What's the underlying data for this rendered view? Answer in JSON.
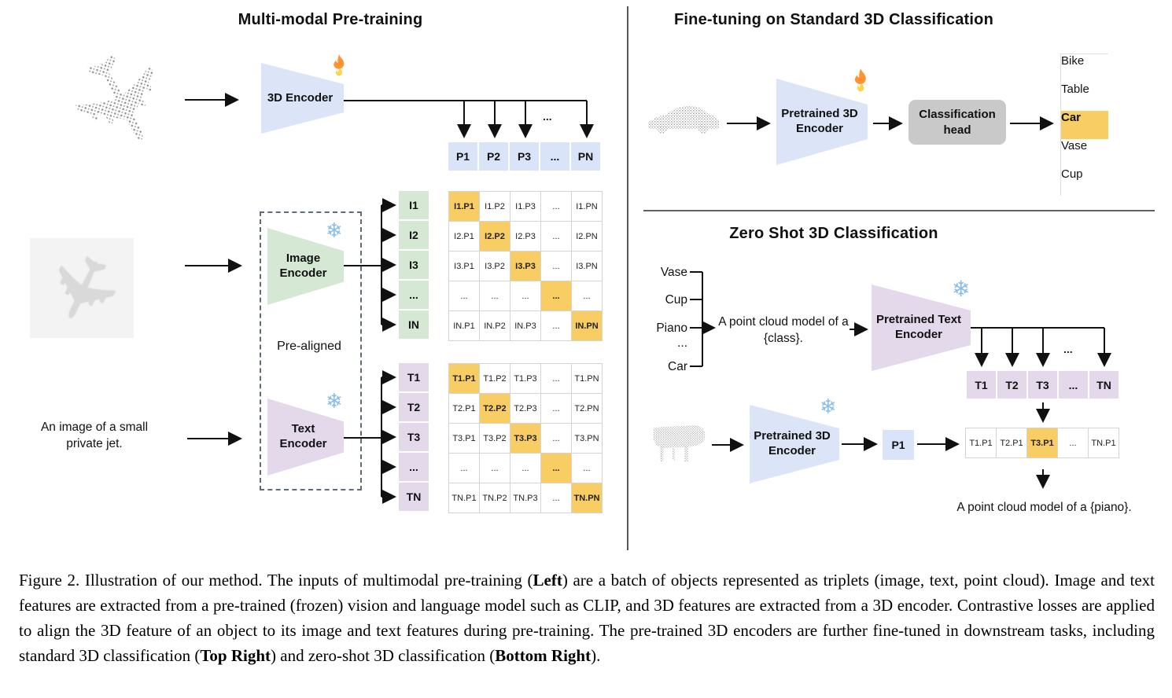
{
  "panels": {
    "pretrain": {
      "title": "Multi-modal Pre-training",
      "encoder3d": "3D Encoder",
      "image_encoder": "Image Encoder",
      "text_encoder": "Text Encoder",
      "pre_aligned": "Pre-aligned",
      "input_caption": "An image of a small private jet.",
      "dots": "...",
      "p_row": [
        "P1",
        "P2",
        "P3",
        "...",
        "PN"
      ],
      "i_col": [
        "I1",
        "I2",
        "I3",
        "...",
        "IN"
      ],
      "t_col": [
        "T1",
        "T2",
        "T3",
        "...",
        "TN"
      ],
      "i_matrix": [
        [
          "I1.P1",
          "I1.P2",
          "I1.P3",
          "...",
          "I1.PN"
        ],
        [
          "I2.P1",
          "I2.P2",
          "I2.P3",
          "...",
          "I2.PN"
        ],
        [
          "I3.P1",
          "I3.P2",
          "I3.P3",
          "...",
          "I3.PN"
        ],
        [
          "...",
          "...",
          "...",
          "...",
          "..."
        ],
        [
          "IN.P1",
          "IN.P2",
          "IN.P3",
          "...",
          "IN.PN"
        ]
      ],
      "t_matrix": [
        [
          "T1.P1",
          "T1.P2",
          "T1.P3",
          "...",
          "T1.PN"
        ],
        [
          "T2.P1",
          "T2.P2",
          "T2.P3",
          "...",
          "T2.PN"
        ],
        [
          "T3.P1",
          "T3.P2",
          "T3.P3",
          "...",
          "T3.PN"
        ],
        [
          "...",
          "...",
          "...",
          "...",
          "..."
        ],
        [
          "TN.P1",
          "TN.P2",
          "TN.P3",
          "...",
          "TN.PN"
        ]
      ]
    },
    "finetune": {
      "title": "Fine-tuning on Standard 3D Classification",
      "encoder": "Pretrained 3D Encoder",
      "head": "Classification head",
      "classes": [
        "Bike",
        "Table",
        "Car",
        "Vase",
        "Cup"
      ],
      "predicted": "Car"
    },
    "zeroshot": {
      "title": "Zero Shot 3D Classification",
      "classes": [
        "Vase",
        "Cup",
        "Piano",
        "...",
        "Car"
      ],
      "prompt": "A point cloud model of a {class}.",
      "text_encoder": "Pretrained Text Encoder",
      "encoder3d": "Pretrained 3D Encoder",
      "p1": "P1",
      "dots": "...",
      "t_row": [
        "T1",
        "T2",
        "T3",
        "...",
        "TN"
      ],
      "tp_row": [
        "T1.P1",
        "T2.P1",
        "T3.P1",
        "...",
        "TN.P1"
      ],
      "tp_highlight": 2,
      "result_prompt": "A point cloud model of a {piano}."
    }
  },
  "icons": {
    "snowflake_glyph": "❄",
    "plane_glyph": "✈",
    "flame_name": "flame-icon (trainable)",
    "snowflake_name": "snowflake-icon (frozen)"
  },
  "colors": {
    "cell_blue": "#d9e4f8",
    "cell_green": "#d5e8d4",
    "cell_purple": "#e3d9eb",
    "highlight_orange": "#f8cd64",
    "head_gray": "#c9c9c9"
  },
  "caption": {
    "segments": [
      {
        "text": "Figure 2. Illustration of our method. The inputs of multimodal pre-training (",
        "bold": false
      },
      {
        "text": "Left",
        "bold": true
      },
      {
        "text": ") are a batch of objects represented as triplets (image, text, point cloud). Image and text features are extracted from a pre-trained (frozen) vision and language model such as CLIP, and 3D features are extracted from a 3D encoder. Contrastive losses are applied to align the 3D feature of an object to its image and text features during pre-training. The pre-trained 3D encoders are further fine-tuned in downstream tasks, including standard 3D classification (",
        "bold": false
      },
      {
        "text": "Top Right",
        "bold": true
      },
      {
        "text": ") and zero-shot 3D classification (",
        "bold": false
      },
      {
        "text": "Bottom Right",
        "bold": true
      },
      {
        "text": ").",
        "bold": false
      }
    ]
  }
}
